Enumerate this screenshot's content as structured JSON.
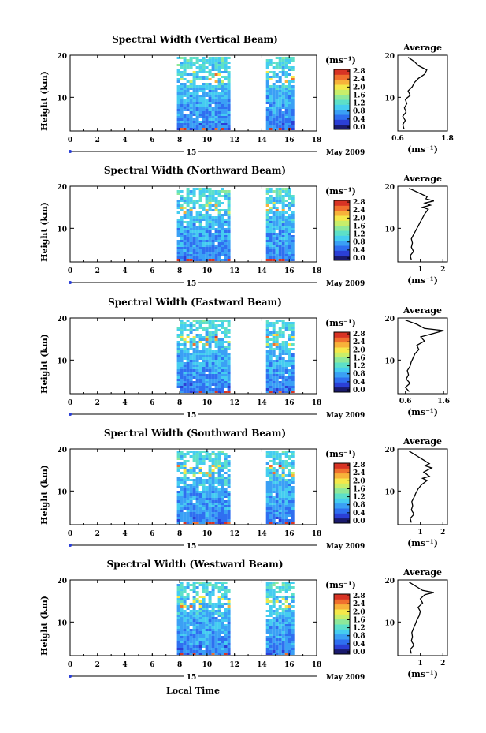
{
  "figure": {
    "xlabel": "Local Time",
    "date_label": "May 2009",
    "day_label": "15",
    "colorbar_unit": "(ms⁻¹)",
    "average_title": "Average",
    "average_unit": "(ms⁻¹)"
  },
  "colors": {
    "palette": [
      "#1a1a6e",
      "#2b3fd6",
      "#2f6ff0",
      "#3aa0f5",
      "#45cdf0",
      "#5de0c8",
      "#8ee89a",
      "#c8ee6a",
      "#f5e84a",
      "#f7b23a",
      "#f0702e",
      "#d83324"
    ]
  },
  "chart_data": [
    {
      "type": "heatmap",
      "title": "Spectral Width (Vertical Beam)",
      "xlabel": "",
      "ylabel": "Height (km)",
      "xlim": [
        0,
        18
      ],
      "xticks": [
        0,
        2,
        4,
        6,
        8,
        10,
        12,
        14,
        16,
        18
      ],
      "ylim": [
        2,
        20
      ],
      "yticks": [
        10,
        20
      ],
      "data_blocks_hours": [
        [
          7.8,
          11.7
        ],
        [
          14.3,
          16.2
        ]
      ],
      "colorbar": {
        "min": 0.0,
        "max": 3.0,
        "ticks": [
          "0.0",
          "0.4",
          "0.8",
          "1.2",
          "1.6",
          "2.0",
          "2.4",
          "2.8"
        ]
      },
      "average": {
        "xlim": [
          0.6,
          1.8
        ],
        "xticks": [
          "0.6",
          "1.8"
        ],
        "yticks": [
          10,
          20
        ],
        "profile": [
          [
            0.75,
            2.5
          ],
          [
            0.72,
            3.5
          ],
          [
            0.78,
            4.5
          ],
          [
            0.72,
            5.5
          ],
          [
            0.8,
            6.5
          ],
          [
            0.76,
            7.5
          ],
          [
            0.82,
            8.5
          ],
          [
            0.78,
            9.5
          ],
          [
            0.9,
            10.5
          ],
          [
            0.85,
            11.5
          ],
          [
            0.95,
            12.5
          ],
          [
            1.0,
            13.5
          ],
          [
            1.1,
            14.5
          ],
          [
            1.25,
            15.5
          ],
          [
            1.3,
            16.5
          ],
          [
            1.2,
            17.0
          ],
          [
            1.1,
            17.5
          ],
          [
            1.0,
            18.5
          ],
          [
            0.85,
            19.5
          ]
        ]
      }
    },
    {
      "type": "heatmap",
      "title": "Spectral Width (Northward Beam)",
      "xlabel": "",
      "ylabel": "Height (km)",
      "xlim": [
        0,
        18
      ],
      "xticks": [
        0,
        2,
        4,
        6,
        8,
        10,
        12,
        14,
        16,
        18
      ],
      "ylim": [
        2,
        20
      ],
      "yticks": [
        10,
        20
      ],
      "data_blocks_hours": [
        [
          7.8,
          11.7
        ],
        [
          14.3,
          16.2
        ]
      ],
      "colorbar": {
        "min": 0.0,
        "max": 3.0,
        "ticks": [
          "0.0",
          "0.4",
          "0.8",
          "1.2",
          "1.6",
          "2.0",
          "2.4",
          "2.8"
        ]
      },
      "average": {
        "xlim": [
          0,
          2.2
        ],
        "xticks": [
          "1",
          "2"
        ],
        "yticks": [
          10,
          20
        ],
        "profile": [
          [
            0.6,
            2.5
          ],
          [
            0.55,
            3.5
          ],
          [
            0.7,
            4.5
          ],
          [
            0.6,
            5.5
          ],
          [
            0.65,
            6.5
          ],
          [
            0.6,
            7.5
          ],
          [
            0.7,
            8.5
          ],
          [
            0.8,
            9.5
          ],
          [
            0.9,
            10.5
          ],
          [
            1.0,
            11.5
          ],
          [
            1.1,
            12.5
          ],
          [
            1.2,
            13.5
          ],
          [
            1.35,
            14.5
          ],
          [
            1.1,
            15.0
          ],
          [
            1.45,
            15.5
          ],
          [
            1.2,
            16.0
          ],
          [
            1.6,
            16.5
          ],
          [
            1.25,
            17.0
          ],
          [
            1.3,
            17.5
          ],
          [
            0.9,
            18.5
          ],
          [
            0.5,
            19.5
          ]
        ]
      }
    },
    {
      "type": "heatmap",
      "title": "Spectral Width (Eastward Beam)",
      "xlabel": "",
      "ylabel": "Height (km)",
      "xlim": [
        0,
        18
      ],
      "xticks": [
        0,
        2,
        4,
        6,
        8,
        10,
        12,
        14,
        16,
        18
      ],
      "ylim": [
        2,
        20
      ],
      "yticks": [
        10,
        20
      ],
      "data_blocks_hours": [
        [
          7.8,
          11.7
        ],
        [
          14.3,
          16.2
        ]
      ],
      "colorbar": {
        "min": 0.0,
        "max": 3.0,
        "ticks": [
          "0.0",
          "0.4",
          "0.8",
          "1.2",
          "1.6",
          "2.0",
          "2.4",
          "2.8"
        ]
      },
      "average": {
        "xlim": [
          0.4,
          1.7
        ],
        "xticks": [
          "0.6",
          "1.6"
        ],
        "yticks": [
          10,
          20
        ],
        "profile": [
          [
            0.7,
            2.5
          ],
          [
            0.6,
            3.5
          ],
          [
            0.72,
            4.5
          ],
          [
            0.62,
            5.5
          ],
          [
            0.68,
            6.5
          ],
          [
            0.65,
            7.5
          ],
          [
            0.72,
            8.5
          ],
          [
            0.75,
            9.5
          ],
          [
            0.8,
            10.5
          ],
          [
            0.85,
            11.5
          ],
          [
            0.95,
            12.5
          ],
          [
            0.9,
            13.5
          ],
          [
            1.1,
            14.5
          ],
          [
            1.0,
            15.5
          ],
          [
            1.4,
            16.5
          ],
          [
            1.6,
            17.0
          ],
          [
            1.1,
            17.5
          ],
          [
            0.9,
            18.5
          ],
          [
            0.6,
            19.5
          ]
        ]
      }
    },
    {
      "type": "heatmap",
      "title": "Spectral Width (Southward Beam)",
      "xlabel": "",
      "ylabel": "Height (km)",
      "xlim": [
        0,
        18
      ],
      "xticks": [
        0,
        2,
        4,
        6,
        8,
        10,
        12,
        14,
        16,
        18
      ],
      "ylim": [
        2,
        20
      ],
      "yticks": [
        10,
        20
      ],
      "data_blocks_hours": [
        [
          7.8,
          11.7
        ],
        [
          14.3,
          16.2
        ]
      ],
      "colorbar": {
        "min": 0.0,
        "max": 3.0,
        "ticks": [
          "0.0",
          "0.4",
          "0.8",
          "1.2",
          "1.6",
          "2.0",
          "2.4",
          "2.8"
        ]
      },
      "average": {
        "xlim": [
          0,
          2.2
        ],
        "xticks": [
          "1",
          "2"
        ],
        "yticks": [
          10,
          20
        ],
        "profile": [
          [
            0.6,
            2.5
          ],
          [
            0.55,
            3.5
          ],
          [
            0.72,
            4.5
          ],
          [
            0.6,
            5.5
          ],
          [
            0.66,
            6.5
          ],
          [
            0.62,
            7.5
          ],
          [
            0.72,
            8.5
          ],
          [
            0.8,
            9.5
          ],
          [
            0.9,
            10.5
          ],
          [
            1.05,
            11.5
          ],
          [
            1.3,
            12.5
          ],
          [
            1.1,
            13.0
          ],
          [
            1.4,
            13.5
          ],
          [
            1.15,
            14.5
          ],
          [
            1.5,
            15.5
          ],
          [
            1.2,
            16.0
          ],
          [
            1.4,
            16.5
          ],
          [
            1.1,
            17.5
          ],
          [
            0.8,
            18.5
          ],
          [
            0.5,
            19.5
          ]
        ]
      }
    },
    {
      "type": "heatmap",
      "title": "Spectral Width (Westward Beam)",
      "xlabel": "Local Time",
      "ylabel": "Height (km)",
      "xlim": [
        0,
        18
      ],
      "xticks": [
        0,
        2,
        4,
        6,
        8,
        10,
        12,
        14,
        16,
        18
      ],
      "ylim": [
        2,
        20
      ],
      "yticks": [
        10,
        20
      ],
      "data_blocks_hours": [
        [
          7.8,
          11.7
        ],
        [
          14.3,
          16.2
        ]
      ],
      "colorbar": {
        "min": 0.0,
        "max": 3.0,
        "ticks": [
          "0.0",
          "0.4",
          "0.8",
          "1.2",
          "1.6",
          "2.0",
          "2.4",
          "2.8"
        ]
      },
      "average": {
        "xlim": [
          0,
          2.2
        ],
        "xticks": [
          "1",
          "2"
        ],
        "yticks": [
          10,
          20
        ],
        "profile": [
          [
            0.6,
            2.5
          ],
          [
            0.55,
            3.5
          ],
          [
            0.72,
            4.5
          ],
          [
            0.6,
            5.5
          ],
          [
            0.65,
            6.5
          ],
          [
            0.62,
            7.5
          ],
          [
            0.7,
            8.5
          ],
          [
            0.78,
            9.5
          ],
          [
            0.85,
            10.5
          ],
          [
            0.95,
            11.5
          ],
          [
            1.0,
            12.5
          ],
          [
            0.9,
            13.5
          ],
          [
            1.1,
            14.5
          ],
          [
            1.0,
            15.5
          ],
          [
            1.2,
            16.5
          ],
          [
            1.6,
            17.0
          ],
          [
            1.1,
            17.5
          ],
          [
            0.8,
            18.5
          ],
          [
            0.5,
            19.5
          ]
        ]
      }
    }
  ]
}
